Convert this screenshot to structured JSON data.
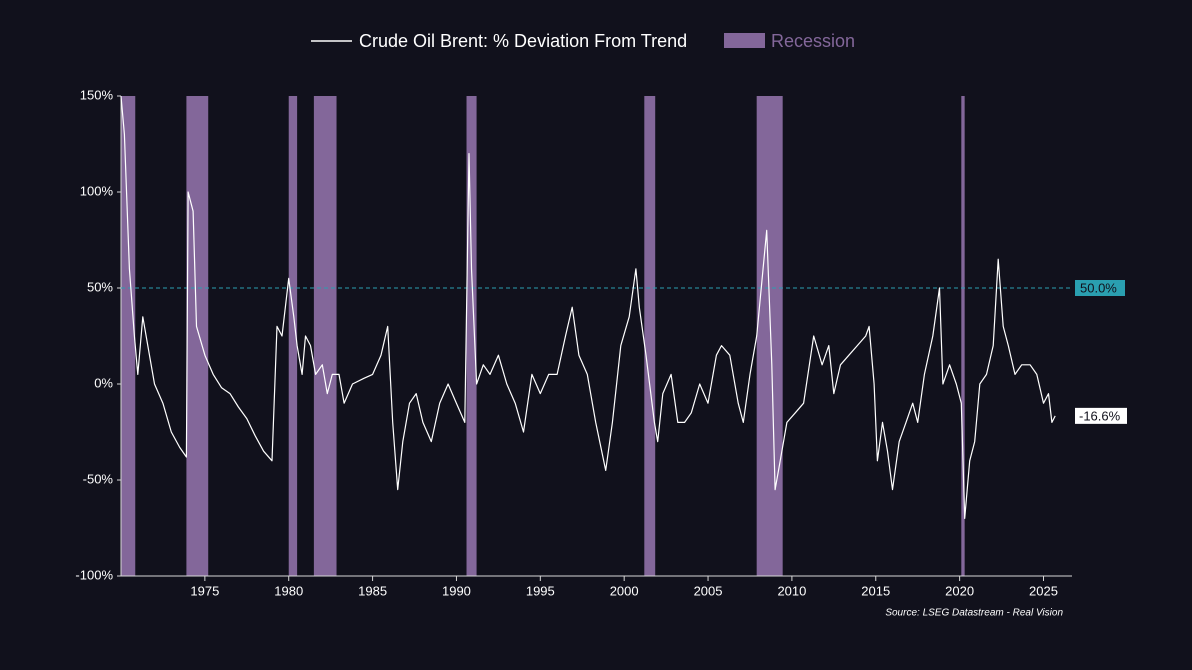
{
  "chart_data": {
    "type": "line",
    "legend_position": "top",
    "source": "Source: LSEG Datastream - Real Vision",
    "xlim": [
      1970,
      2026.7
    ],
    "xticks": [
      1975,
      1980,
      1985,
      1990,
      1995,
      2000,
      2005,
      2010,
      2015,
      2020,
      2025
    ],
    "ylim": [
      -100,
      150
    ],
    "yticks": [
      {
        "value": 150,
        "label": "150%"
      },
      {
        "value": 100,
        "label": "100%"
      },
      {
        "value": 50,
        "label": "50%"
      },
      {
        "value": 0,
        "label": "0%"
      },
      {
        "value": -50,
        "label": "-50%"
      },
      {
        "value": -100,
        "label": "-100%"
      }
    ],
    "reference_line": {
      "value": 50,
      "label": "50.0%",
      "color": "#2a9fb0"
    },
    "recession": {
      "name": "Recession",
      "color": "#83679a",
      "periods": [
        [
          1970.0,
          1970.85
        ],
        [
          1973.9,
          1975.2
        ],
        [
          1980.0,
          1980.5
        ],
        [
          1981.5,
          1982.85
        ],
        [
          1990.6,
          1991.2
        ],
        [
          2001.2,
          2001.85
        ],
        [
          2007.9,
          2009.45
        ],
        [
          2020.1,
          2020.3
        ]
      ]
    },
    "series": [
      {
        "name": "Crude Oil Brent: % Deviation From Trend",
        "color": "#ffffff",
        "end_label": "-16.6%",
        "x": [
          1970.0,
          1970.2,
          1970.5,
          1970.8,
          1971.0,
          1971.3,
          1971.6,
          1972.0,
          1972.5,
          1973.0,
          1973.5,
          1973.9,
          1974.0,
          1974.3,
          1974.5,
          1975.0,
          1975.5,
          1976.0,
          1976.5,
          1977.0,
          1977.5,
          1978.0,
          1978.5,
          1979.0,
          1979.3,
          1979.6,
          1980.0,
          1980.3,
          1980.5,
          1980.8,
          1981.0,
          1981.3,
          1981.6,
          1982.0,
          1982.3,
          1982.6,
          1983.0,
          1983.3,
          1983.8,
          1984.5,
          1985.0,
          1985.5,
          1985.9,
          1986.2,
          1986.5,
          1986.8,
          1987.2,
          1987.6,
          1988.0,
          1988.5,
          1989.0,
          1989.5,
          1990.0,
          1990.5,
          1990.75,
          1990.9,
          1991.2,
          1991.6,
          1992.0,
          1992.5,
          1993.0,
          1993.5,
          1994.0,
          1994.5,
          1995.0,
          1995.5,
          1996.0,
          1996.5,
          1996.9,
          1997.3,
          1997.8,
          1998.3,
          1998.9,
          1999.3,
          1999.8,
          2000.3,
          2000.7,
          2000.9,
          2001.3,
          2001.8,
          2002.0,
          2002.3,
          2002.8,
          2003.2,
          2003.6,
          2004.0,
          2004.5,
          2005.0,
          2005.5,
          2005.8,
          2006.3,
          2006.8,
          2007.1,
          2007.5,
          2007.9,
          2008.5,
          2008.8,
          2009.0,
          2009.3,
          2009.7,
          2010.2,
          2010.7,
          2011.3,
          2011.8,
          2012.2,
          2012.5,
          2012.9,
          2013.4,
          2013.9,
          2014.4,
          2014.6,
          2014.9,
          2015.1,
          2015.4,
          2015.7,
          2016.0,
          2016.4,
          2016.8,
          2017.2,
          2017.5,
          2017.9,
          2018.4,
          2018.8,
          2019.0,
          2019.4,
          2019.8,
          2020.1,
          2020.3,
          2020.6,
          2020.9,
          2021.2,
          2021.6,
          2022.0,
          2022.3,
          2022.6,
          2022.9,
          2023.3,
          2023.7,
          2024.2,
          2024.6,
          2025.0,
          2025.3,
          2025.5,
          2025.7
        ],
        "values": [
          150,
          130,
          60,
          25,
          5,
          35,
          20,
          0,
          -10,
          -25,
          -33,
          -38,
          100,
          90,
          30,
          15,
          5,
          -2,
          -5,
          -12,
          -18,
          -27,
          -35,
          -40,
          30,
          25,
          55,
          35,
          20,
          5,
          25,
          20,
          5,
          10,
          -5,
          5,
          5,
          -10,
          0,
          3,
          5,
          15,
          30,
          -20,
          -55,
          -30,
          -10,
          -5,
          -20,
          -30,
          -10,
          0,
          -10,
          -20,
          120,
          60,
          0,
          10,
          5,
          15,
          0,
          -10,
          -25,
          5,
          -5,
          5,
          5,
          25,
          40,
          15,
          5,
          -20,
          -45,
          -20,
          20,
          35,
          60,
          40,
          15,
          -20,
          -30,
          -5,
          5,
          -20,
          -20,
          -15,
          0,
          -10,
          15,
          20,
          15,
          -10,
          -20,
          5,
          25,
          80,
          10,
          -55,
          -40,
          -20,
          -15,
          -10,
          25,
          10,
          20,
          -5,
          10,
          15,
          20,
          25,
          30,
          0,
          -40,
          -20,
          -35,
          -55,
          -30,
          -20,
          -10,
          -20,
          5,
          25,
          50,
          0,
          10,
          0,
          -10,
          -70,
          -40,
          -30,
          0,
          5,
          20,
          65,
          30,
          20,
          5,
          10,
          10,
          5,
          -10,
          -5,
          -20,
          -16.6
        ]
      }
    ]
  }
}
